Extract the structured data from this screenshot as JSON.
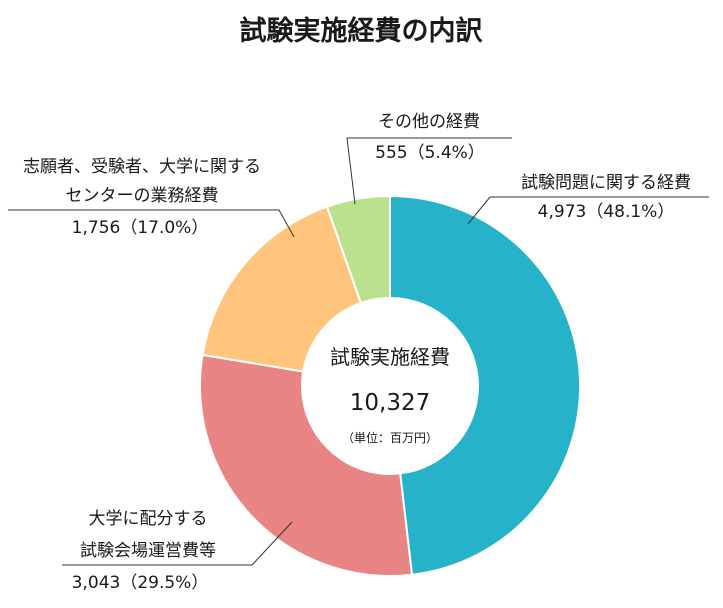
{
  "chart_data": {
    "type": "pie",
    "title": "試験実施経費の内訳",
    "center": {
      "label": "試験実施経費",
      "total": "10,327",
      "unit": "（単位：百万円）"
    },
    "slices": [
      {
        "label_lines": [
          "試験問題に関する経費"
        ],
        "value": 4973,
        "value_text": "4,973（48.1%）",
        "percent": 48.1,
        "color": "#26B3C9"
      },
      {
        "label_lines": [
          "大学に配分する",
          "試験会場運営費等"
        ],
        "value": 3043,
        "value_text": "3,043（29.5%）",
        "percent": 29.5,
        "color": "#E88483"
      },
      {
        "label_lines": [
          "志願者、受験者、大学に関する",
          "センターの業務経費"
        ],
        "value": 1756,
        "value_text": "1,756（17.0%）",
        "percent": 17.0,
        "color": "#FFC57D"
      },
      {
        "label_lines": [
          "その他の経費"
        ],
        "value": 555,
        "value_text": "555（5.4%）",
        "percent": 5.4,
        "color": "#BBE08F"
      }
    ]
  }
}
